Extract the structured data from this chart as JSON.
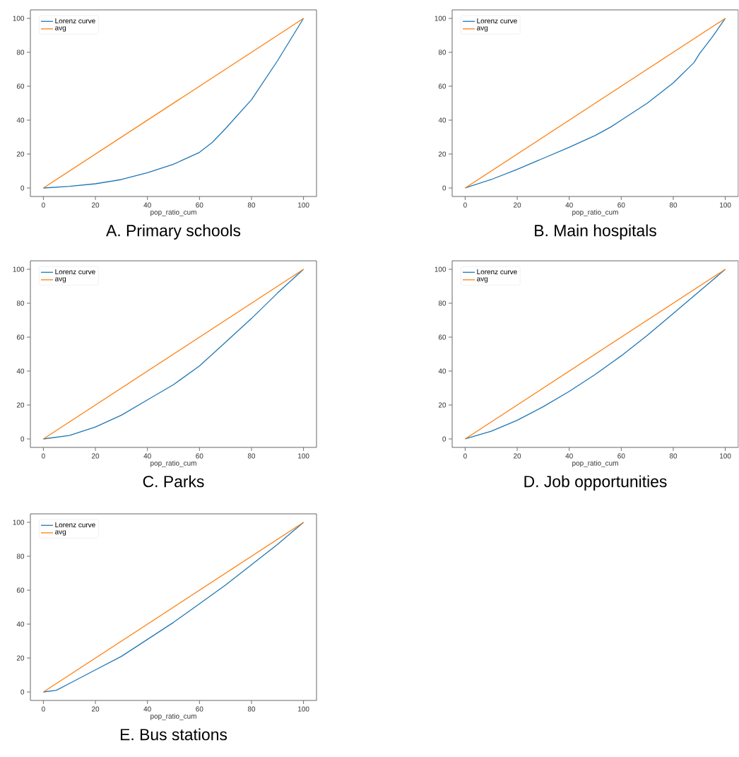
{
  "chart_data": [
    {
      "type": "line",
      "title": "A. Primary schools",
      "xlabel": "pop_ratio_cum",
      "xlim": [
        -5,
        105
      ],
      "ylim": [
        -5,
        105
      ],
      "xticks": [
        0,
        20,
        40,
        60,
        80,
        100
      ],
      "yticks": [
        0,
        20,
        40,
        60,
        80,
        100
      ],
      "legend": "top left",
      "series": [
        {
          "name": "Lorenz curve",
          "color": "#1f77b4",
          "x": [
            0,
            10,
            20,
            30,
            40,
            50,
            60,
            65,
            70,
            80,
            90,
            100
          ],
          "values": [
            0,
            1,
            2.5,
            5,
            9,
            14,
            21,
            27,
            35,
            52,
            75,
            100
          ]
        },
        {
          "name": "avg",
          "color": "#ff7f0e",
          "x": [
            0,
            100
          ],
          "values": [
            0,
            100
          ]
        }
      ]
    },
    {
      "type": "line",
      "title": "B. Main hospitals",
      "xlabel": "pop_ratio_cum",
      "xlim": [
        -5,
        105
      ],
      "ylim": [
        -5,
        105
      ],
      "xticks": [
        0,
        20,
        40,
        60,
        80,
        100
      ],
      "yticks": [
        0,
        20,
        40,
        60,
        80,
        100
      ],
      "legend": "top left",
      "series": [
        {
          "name": "Lorenz curve",
          "color": "#1f77b4",
          "x": [
            0,
            10,
            20,
            30,
            40,
            50,
            56,
            60,
            70,
            80,
            82,
            86,
            88,
            90,
            95,
            100
          ],
          "values": [
            0,
            5,
            11,
            17.5,
            24,
            31,
            36,
            40,
            50,
            62,
            65,
            71,
            74,
            79,
            89,
            100
          ]
        },
        {
          "name": "avg",
          "color": "#ff7f0e",
          "x": [
            0,
            100
          ],
          "values": [
            0,
            100
          ]
        }
      ]
    },
    {
      "type": "line",
      "title": "C. Parks",
      "xlabel": "pop_ratio_cum",
      "xlim": [
        -5,
        105
      ],
      "ylim": [
        -5,
        105
      ],
      "xticks": [
        0,
        20,
        40,
        60,
        80,
        100
      ],
      "yticks": [
        0,
        20,
        40,
        60,
        80,
        100
      ],
      "legend": "top left",
      "series": [
        {
          "name": "Lorenz curve",
          "color": "#1f77b4",
          "x": [
            0,
            10,
            20,
            30,
            40,
            50,
            60,
            70,
            80,
            90,
            100
          ],
          "values": [
            0,
            2,
            7,
            14,
            23,
            32,
            43,
            57,
            71,
            86,
            100
          ]
        },
        {
          "name": "avg",
          "color": "#ff7f0e",
          "x": [
            0,
            100
          ],
          "values": [
            0,
            100
          ]
        }
      ]
    },
    {
      "type": "line",
      "title": "D. Job opportunities",
      "xlabel": "pop_ratio_cum",
      "xlim": [
        -5,
        105
      ],
      "ylim": [
        -5,
        105
      ],
      "xticks": [
        0,
        20,
        40,
        60,
        80,
        100
      ],
      "yticks": [
        0,
        20,
        40,
        60,
        80,
        100
      ],
      "legend": "top left",
      "series": [
        {
          "name": "Lorenz curve",
          "color": "#1f77b4",
          "x": [
            0,
            10,
            20,
            30,
            40,
            50,
            60,
            70,
            80,
            90,
            100
          ],
          "values": [
            0,
            4.5,
            11,
            19,
            28,
            38,
            49,
            61,
            74,
            87,
            100
          ]
        },
        {
          "name": "avg",
          "color": "#ff7f0e",
          "x": [
            0,
            100
          ],
          "values": [
            0,
            100
          ]
        }
      ]
    },
    {
      "type": "line",
      "title": "E. Bus stations",
      "xlabel": "pop_ratio_cum",
      "xlim": [
        -5,
        105
      ],
      "ylim": [
        -5,
        105
      ],
      "xticks": [
        0,
        20,
        40,
        60,
        80,
        100
      ],
      "yticks": [
        0,
        20,
        40,
        60,
        80,
        100
      ],
      "legend": "top left",
      "series": [
        {
          "name": "Lorenz curve",
          "color": "#1f77b4",
          "x": [
            0,
            5,
            10,
            20,
            30,
            40,
            50,
            60,
            70,
            80,
            90,
            100
          ],
          "values": [
            0,
            1,
            5,
            13,
            21,
            31,
            41,
            52,
            63,
            75,
            87,
            100
          ]
        },
        {
          "name": "avg",
          "color": "#ff7f0e",
          "x": [
            0,
            100
          ],
          "values": [
            0,
            100
          ]
        }
      ]
    }
  ]
}
